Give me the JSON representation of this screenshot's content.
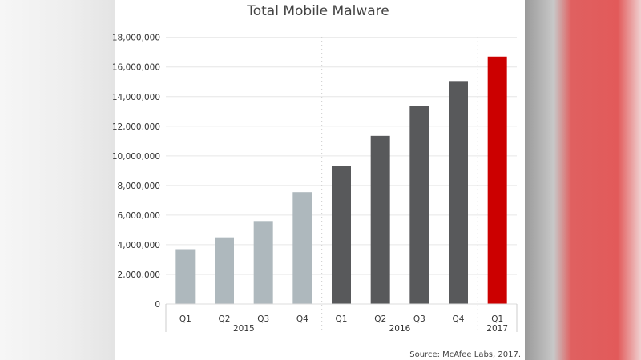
{
  "chart_data": {
    "type": "bar",
    "title": "Total Mobile Malware",
    "categories": [
      "Q1",
      "Q2",
      "Q3",
      "Q4",
      "Q1",
      "Q2",
      "Q3",
      "Q4",
      "Q1"
    ],
    "groups": [
      {
        "label": "2015",
        "count": 4
      },
      {
        "label": "2016",
        "count": 4
      },
      {
        "label": "2017",
        "count": 1
      }
    ],
    "values": [
      3700000,
      4500000,
      5600000,
      7550000,
      9300000,
      11350000,
      13350000,
      15050000,
      16700000
    ],
    "colors": [
      "#aeb8bd",
      "#aeb8bd",
      "#aeb8bd",
      "#aeb8bd",
      "#58595b",
      "#58595b",
      "#58595b",
      "#58595b",
      "#cc0000"
    ],
    "yticks": [
      "0",
      "2,000,000",
      "4,000,000",
      "6,000,000",
      "8,000,000",
      "10,000,000",
      "12,000,000",
      "14,000,000",
      "16,000,000",
      "18,000,000"
    ],
    "ylim": [
      0,
      18000000
    ],
    "xlabel": "",
    "ylabel": "",
    "grid": true,
    "source": "Source: McAfee Labs, 2017."
  }
}
